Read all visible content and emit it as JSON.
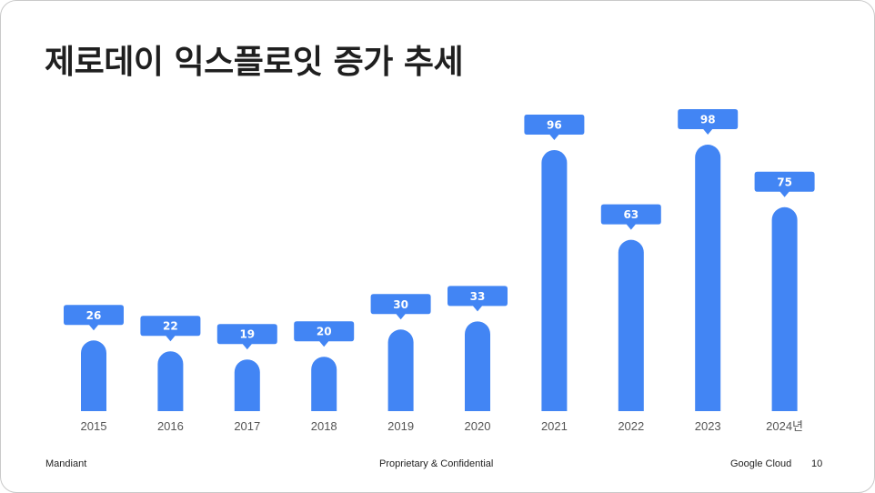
{
  "slide": {
    "title": "제로데이 익스플로잇 증가 추세"
  },
  "footer": {
    "left": "Mandiant",
    "center": "Proprietary & Confidential",
    "brand": "Google Cloud",
    "page_number": "10"
  },
  "colors": {
    "bar": "#4285f4",
    "label_text": "#ffffff",
    "axis_text": "#555555",
    "title_text": "#1f1f1f"
  },
  "chart_data": {
    "type": "bar",
    "title": "제로데이 익스플로잇 증가 추세",
    "categories": [
      "2015",
      "2016",
      "2017",
      "2018",
      "2019",
      "2020",
      "2021",
      "2022",
      "2023",
      "2024년"
    ],
    "values": [
      26,
      22,
      19,
      20,
      30,
      33,
      96,
      63,
      98,
      75
    ],
    "xlabel": "",
    "ylabel": "",
    "ylim": [
      0,
      98
    ],
    "grid": false,
    "legend": "none",
    "data_labels": true
  }
}
